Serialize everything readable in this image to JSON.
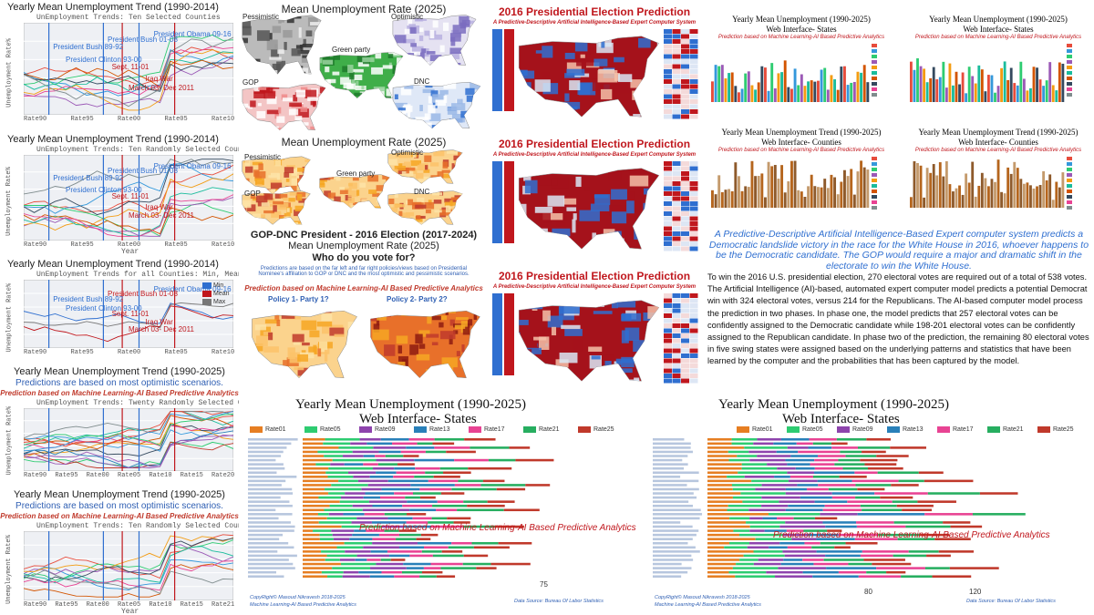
{
  "trend_panels": [
    {
      "title": "Yearly Mean Unemployment Trend (1990-2014)",
      "subtitle": "UnEmployment Trends: Ten  Selected Counties",
      "y_label": "Unemployment Rate%",
      "x_ticks": [
        "Rate90",
        "Rate95",
        "Rate00",
        "Rate05",
        "Rate10"
      ],
      "annotations": [
        {
          "text": "President Obama 09-16",
          "color": "#2f6fd0"
        },
        {
          "text": "President Bush 89-92",
          "color": "#2f6fd0"
        },
        {
          "text": "President  Bush 01-08",
          "color": "#2f6fd0"
        },
        {
          "text": "President Clinton 93-00",
          "color": "#2f6fd0"
        },
        {
          "text": "Sept. 11-01",
          "color": "#c0171d"
        },
        {
          "text": "Iraq War",
          "color": "#c0171d"
        },
        {
          "text": "March 03- Dec 2011",
          "color": "#c0171d"
        }
      ]
    },
    {
      "title": "Yearly Mean Unemployment Trend (1990-2014)",
      "subtitle": "UnEmployment Trends: Ten Randomly Selected Counties",
      "y_label": "Unemployment Rate%",
      "x_label": "Year",
      "x_ticks": [
        "Rate90",
        "Rate95",
        "Rate00",
        "Rate05",
        "Rate10"
      ],
      "annotations": [
        {
          "text": "President Obama 09-16",
          "color": "#2f6fd0"
        },
        {
          "text": "President Bush 89-92",
          "color": "#2f6fd0"
        },
        {
          "text": "President  Bush 01-08",
          "color": "#2f6fd0"
        },
        {
          "text": "President Clinton 93-00",
          "color": "#2f6fd0"
        },
        {
          "text": "Sept. 11-01",
          "color": "#c0171d"
        },
        {
          "text": "Iraq War",
          "color": "#c0171d"
        },
        {
          "text": "March 03- Dec 2011",
          "color": "#c0171d"
        }
      ]
    },
    {
      "title": "Yearly Mean Unemployment Trend (1990-2014)",
      "subtitle": "UnEmployment Trends for all Counties: Min, Mean and Max",
      "y_label": "Unemployment Rate%",
      "x_ticks": [
        "Rate90",
        "Rate95",
        "Rate00",
        "Rate05",
        "Rate10"
      ],
      "legend": [
        "Min",
        "Mean",
        "Max"
      ],
      "annotations": [
        {
          "text": "President Obama 09-16",
          "color": "#2f6fd0"
        },
        {
          "text": "President Bush 89-92",
          "color": "#2f6fd0"
        },
        {
          "text": "President  Bush 01-08",
          "color": "#c0171d"
        },
        {
          "text": "President Clinton 93-00",
          "color": "#2f6fd0"
        },
        {
          "text": "Sept. 11-01",
          "color": "#c0171d"
        },
        {
          "text": "Iraq War",
          "color": "#c0171d"
        },
        {
          "text": "March 03- Dec 2011",
          "color": "#c0171d"
        }
      ]
    },
    {
      "title": "Yearly Mean Unemployment Trend (1990-2025)",
      "notes": [
        "Predictions are based on most optimistic scenarios.",
        "Prediction based on Machine Learning-AI Based Predictive Analytics"
      ],
      "subtitle": "UnEmployment Trends: Twenty Randomly Selected Counties",
      "y_label": "Unemployment Rate%",
      "x_ticks": [
        "Rate90",
        "Rate95",
        "Rate00",
        "Rate05",
        "Rate10",
        "Rate15",
        "Rate20"
      ]
    },
    {
      "title": "Yearly Mean Unemployment Trend (1990-2025)",
      "notes": [
        "Predictions are based on most optimistic scenarios.",
        "Prediction based on Machine Learning-AI Based Predictive Analytics"
      ],
      "subtitle": "UnEmployment Trends: Ten Randomly Selected Counties",
      "y_label": "Unemployment Rate%",
      "x_label": "Year",
      "x_ticks": [
        "Rate90",
        "Rate95",
        "Rate00",
        "Rate05",
        "Rate10",
        "Rate15",
        "Rate21"
      ]
    }
  ],
  "maps": [
    {
      "title": "Mean Unemployment Rate (2025)",
      "labels": [
        "Pessimistic",
        "Optimistic",
        "Green party",
        "GOP",
        "DNC"
      ]
    },
    {
      "title": "Mean Unemployment Rate (2025)",
      "labels": [
        "Pessimistic",
        "Optimistic",
        "Green party",
        "GOP",
        "DNC"
      ]
    },
    {
      "title": "GOP-DNC President - 2016 Election (2017-2024)",
      "subtitle": "Mean Unemployment Rate (2025)",
      "question": "Who do you vote for?",
      "note": "Predictions are based on the far left and far right policies/views based on Presidential Nominee's affiliation to GOP or DNC and the most optimistic and pessimistic scenarios.",
      "prediction": "Prediction based on Machine Learning-AI Based Predictive Analytics",
      "labels": [
        "Policy 1- Party 1?",
        "Policy 2- Party 2?"
      ]
    }
  ],
  "election": [
    {
      "title": "2016 Presidential Election Prediction",
      "subtitle": "A Predictive-Descriptive Artificial Intelligence-Based Expert Computer System"
    },
    {
      "title": "2016 Presidential Election Prediction",
      "subtitle": "A Predictive-Descriptive Artificial Intelligence-Based Expert Computer System"
    },
    {
      "title": "2016 Presidential Election Prediction",
      "subtitle": "A Predictive-Descriptive Artificial Intelligence-Based Expert Computer System"
    }
  ],
  "small_bars": [
    {
      "title": "Yearly Mean Unemployment (1990-2025)",
      "subtitle": "Web Interface- States",
      "note": "Prediction based on Machine Learning-AI Based Predictive Analytics"
    },
    {
      "title": "Yearly Mean Unemployment (1990-2025)",
      "subtitle": "Web Interface- States",
      "note": "Prediction based on Machine Learning-AI Based Predictive Analytics"
    },
    {
      "title": "Yearly Mean Unemployment Trend (1990-2025)",
      "subtitle": "Web Interface- Counties",
      "note": "Prediction based on Machine Learning-AI Based Predictive Analytics"
    },
    {
      "title": "Yearly Mean Unemployment Trend (1990-2025)",
      "subtitle": "Web Interface- Counties",
      "note": "Prediction based on Machine Learning-AI Based Predictive Analytics"
    }
  ],
  "summary": {
    "highlight": "A Predictive-Descriptive Artificial Intelligence-Based Expert computer system predicts a Democratic landslide victory in the race for the White House in 2016, whoever happens to be the Democratic candidate. The GOP would require a major and dramatic shift in the electorate to win the White House.",
    "body": "To win the 2016 U.S. presidential election, 270 electoral votes are required out of a total of 538 votes. The Artificial Intelligence (AI)-based, automated expert computer model predicts a potential Democrat win with 324 electoral votes, versus 214 for the Republicans. The AI-based computer model process the prediction in two phases. In phase one, the model predicts that 257 electoral votes can be confidently assigned to the Democratic candidate while 198-201 electoral votes can be confidently assigned to the Republican candidate.  In phase two of the prediction, the remaining 80 electoral votes in five swing states were assigned based on the underlying patterns and statistics that have been learned by the computer and the probabilities that has been captured by the model."
  },
  "large_bars": [
    {
      "title": "Yearly Mean Unemployment (1990-2025)",
      "subtitle": "Web Interface- States",
      "legend": [
        "Rate01",
        "Rate05",
        "Rate09",
        "Rate13",
        "Rate17",
        "Rate21",
        "Rate25"
      ],
      "prediction": "Prediction based on Machine Learning-AI Based Predictive Analytics",
      "axis_label": "75",
      "copyright": "CopyRight© Masoud Nikravesh 2018-2025",
      "credit": "Machine Learning-AI Based Predictive Analytics",
      "source": "Data Source: Bureau Of Labor Statistics"
    },
    {
      "title": "Yearly Mean Unemployment (1990-2025)",
      "subtitle": "Web Interface- States",
      "legend": [
        "Rate01",
        "Rate05",
        "Rate09",
        "Rate13",
        "Rate17",
        "Rate21",
        "Rate25"
      ],
      "prediction": "Prediction based on Machine Learning-AI Based Predictive Analytics",
      "axis_labels": [
        "80",
        "120"
      ],
      "copyright": "CopyRight© Masoud Nikravesh 2018-2025",
      "credit": "Machine Learning-AI Based Predictive Analytics",
      "source": "Data Source: Bureau Of Labor Statistics"
    }
  ]
}
